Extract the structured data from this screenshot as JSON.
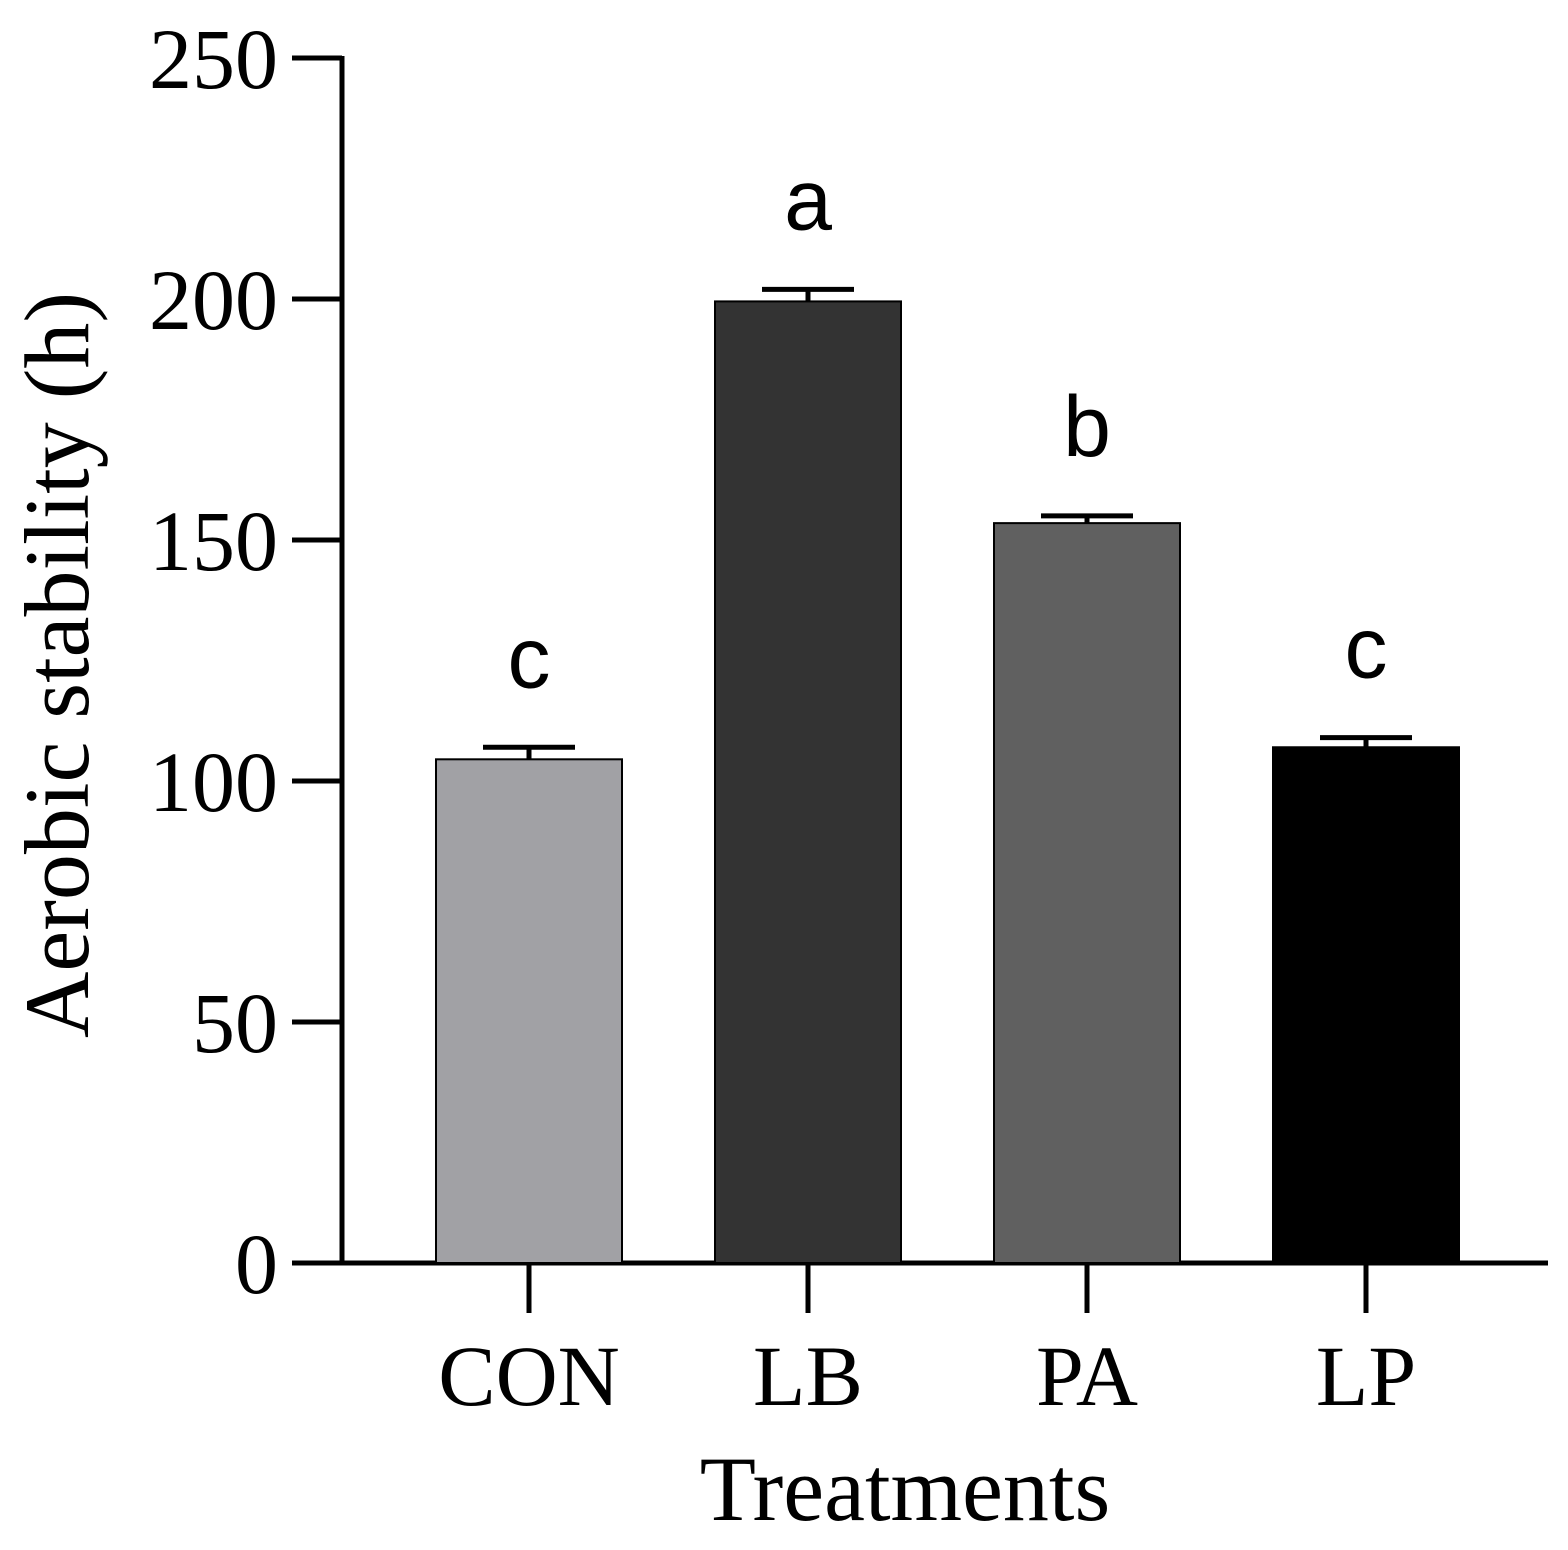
{
  "chart_data": {
    "type": "bar",
    "title": "",
    "xlabel": "Treatments",
    "ylabel": "Aerobic stability (h)",
    "ylim": [
      0,
      250
    ],
    "yticks": [
      0,
      50,
      100,
      150,
      200,
      250
    ],
    "categories": [
      "CON",
      "LB",
      "PA",
      "LP"
    ],
    "values": [
      104.5,
      199.5,
      153.5,
      107
    ],
    "errors": [
      2.5,
      2.5,
      1.5,
      2
    ],
    "significance": [
      "c",
      "a",
      "b",
      "c"
    ],
    "colors": [
      "#a1a1a5",
      "#333333",
      "#606060",
      "#000000"
    ],
    "grid": false
  }
}
